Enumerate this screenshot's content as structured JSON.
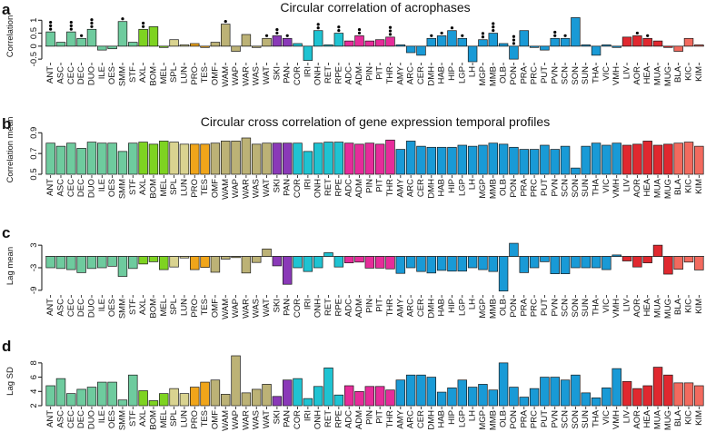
{
  "chart_data": [
    {
      "type": "bar",
      "panel_letter": "a",
      "title": "Circular correlation of acrophases",
      "ylabel": "Correlation",
      "ylim": [
        -0.6,
        1.15
      ],
      "yticks": [
        -0.5,
        0,
        0.5,
        1
      ],
      "ytick_labels": [
        "-0.5",
        "0",
        "0.5",
        "1"
      ],
      "categories": [
        "ANT",
        "ASC",
        "CEC",
        "DEC",
        "DUO",
        "ILE",
        "OES",
        "SMM",
        "STF",
        "AXL",
        "BOM",
        "MEL",
        "SPL",
        "LUN",
        "PRO",
        "TES",
        "OMF",
        "WAM",
        "WAP",
        "WAR",
        "WAS",
        "WAT",
        "SKI",
        "PAN",
        "COR",
        "IRI",
        "ONH",
        "RET",
        "RPE",
        "ADC",
        "ADM",
        "PIN",
        "PIT",
        "THR",
        "AMY",
        "ARC",
        "CER",
        "DMH",
        "HAB",
        "HIP",
        "LGP",
        "LH",
        "MGP",
        "MMB",
        "OLB",
        "PON",
        "PRA",
        "PRC",
        "PUT",
        "PVN",
        "SCN",
        "SON",
        "SUN",
        "THA",
        "VIC",
        "VMH",
        "LIV",
        "AOR",
        "HEA",
        "MUA",
        "MUG",
        "BLA",
        "KIC",
        "KIM"
      ],
      "values": [
        0.55,
        0.15,
        0.55,
        0.3,
        0.65,
        -0.15,
        -0.1,
        0.95,
        0.15,
        0.65,
        0.75,
        -0.05,
        0.25,
        0.05,
        0.1,
        -0.05,
        0.15,
        0.85,
        -0.2,
        0.45,
        -0.05,
        0.3,
        0.4,
        0.3,
        0.1,
        -0.55,
        0.6,
        0.05,
        0.5,
        0.2,
        0.4,
        0.2,
        0.25,
        0.35,
        0.05,
        -0.25,
        -0.35,
        0.3,
        0.4,
        0.6,
        0.3,
        -0.6,
        0.25,
        0.5,
        0.1,
        -0.5,
        0.6,
        -0.05,
        -0.15,
        0.3,
        0.3,
        1.1,
        0.05,
        -0.35,
        0.05,
        -0.05,
        0.35,
        0.4,
        0.3,
        0.2,
        -0.05,
        -0.2,
        0.3,
        0.05
      ],
      "stars": [
        3,
        0,
        3,
        1,
        3,
        0,
        0,
        1,
        0,
        2,
        0,
        0,
        0,
        0,
        0,
        0,
        0,
        1,
        0,
        0,
        0,
        1,
        2,
        1,
        0,
        0,
        2,
        0,
        2,
        0,
        2,
        0,
        0,
        3,
        0,
        0,
        0,
        1,
        1,
        1,
        1,
        0,
        2,
        3,
        0,
        3,
        0,
        0,
        0,
        2,
        1,
        0,
        0,
        0,
        0,
        0,
        0,
        1,
        1,
        0,
        0,
        0,
        0,
        0
      ]
    },
    {
      "type": "bar",
      "panel_letter": "b",
      "title": "Circular cross correlation of gene expression temporal profiles",
      "ylabel": "Correlation mean",
      "ylim": [
        0.5,
        0.92
      ],
      "yticks": [
        0.5,
        0.7,
        0.9
      ],
      "ytick_labels": [
        "0.5",
        "0.7",
        "0.9"
      ],
      "categories": [
        "ANT",
        "ASC",
        "CEC",
        "DEC",
        "DUO",
        "ILE",
        "OES",
        "SMM",
        "STF",
        "AXL",
        "BOM",
        "MEL",
        "SPL",
        "LUN",
        "PRO",
        "TES",
        "OMF",
        "WAM",
        "WAP",
        "WAR",
        "WAS",
        "WAT",
        "SKI",
        "PAN",
        "COR",
        "IRI",
        "ONH",
        "RET",
        "RPE",
        "ADC",
        "ADM",
        "PIN",
        "PIT",
        "THR",
        "AMY",
        "ARC",
        "CER",
        "DMH",
        "HAB",
        "HIP",
        "LGP",
        "LH",
        "MGP",
        "MMB",
        "OLB",
        "PON",
        "PRA",
        "PRC",
        "PUT",
        "PVN",
        "SCN",
        "SON",
        "SUN",
        "THA",
        "VIC",
        "VMH",
        "LIV",
        "AOR",
        "HEA",
        "MUA",
        "MUG",
        "BLA",
        "KIC",
        "KIM"
      ],
      "values": [
        0.8,
        0.77,
        0.8,
        0.75,
        0.81,
        0.8,
        0.8,
        0.72,
        0.8,
        0.81,
        0.79,
        0.82,
        0.81,
        0.79,
        0.79,
        0.79,
        0.8,
        0.82,
        0.82,
        0.85,
        0.79,
        0.8,
        0.8,
        0.8,
        0.8,
        0.72,
        0.8,
        0.81,
        0.81,
        0.8,
        0.79,
        0.8,
        0.79,
        0.83,
        0.74,
        0.82,
        0.77,
        0.76,
        0.76,
        0.76,
        0.78,
        0.77,
        0.78,
        0.8,
        0.79,
        0.76,
        0.74,
        0.74,
        0.78,
        0.74,
        0.77,
        0.56,
        0.77,
        0.8,
        0.78,
        0.8,
        0.78,
        0.79,
        0.82,
        0.78,
        0.79,
        0.8,
        0.81,
        0.77
      ]
    },
    {
      "type": "bar",
      "panel_letter": "c",
      "title": "",
      "ylabel": "Lag mean",
      "ylim": [
        -10,
        4
      ],
      "yticks": [
        -9,
        -3,
        3
      ],
      "ytick_labels": [
        "-9",
        "-3",
        "3"
      ],
      "categories": [
        "ANT",
        "ASC",
        "CEC",
        "DEC",
        "DUO",
        "ILE",
        "OES",
        "SMM",
        "STF",
        "AXL",
        "BOM",
        "MEL",
        "SPL",
        "LUN",
        "PRO",
        "TES",
        "OMF",
        "WAM",
        "WAP",
        "WAR",
        "WAS",
        "WAT",
        "SKI",
        "PAN",
        "COR",
        "IRI",
        "ONH",
        "RET",
        "RPE",
        "ADC",
        "ADM",
        "PIN",
        "PIT",
        "THR",
        "AMY",
        "ARC",
        "CER",
        "DMH",
        "HAB",
        "HIP",
        "LGP",
        "LH",
        "MGP",
        "MMB",
        "OLB",
        "PON",
        "PRA",
        "PRC",
        "PUT",
        "PVN",
        "SCN",
        "SON",
        "SUN",
        "THA",
        "VIC",
        "VMH",
        "LIV",
        "AOR",
        "HEA",
        "MUA",
        "MUG",
        "BLA",
        "KIC",
        "KIM"
      ],
      "values": [
        -3.0,
        -3.2,
        -3.5,
        -4.3,
        -3.2,
        -3.0,
        -2.6,
        -5.3,
        -3.2,
        -2.0,
        -1.4,
        -3.5,
        -2.8,
        -0.4,
        -3.5,
        -2.9,
        -4.2,
        -0.7,
        -0.3,
        -4.4,
        -1.6,
        2.0,
        -2.5,
        -7.4,
        -3.0,
        -4.0,
        -3.0,
        1.0,
        -2.8,
        -1.7,
        -1.5,
        -3.1,
        -3.1,
        -3.3,
        -4.5,
        -3.0,
        -4.0,
        -4.4,
        -3.7,
        -3.9,
        -3.9,
        -3.0,
        -3.5,
        -4.0,
        -9.2,
        3.5,
        -4.3,
        -3.0,
        -1.4,
        -4.6,
        -4.6,
        -3.0,
        -3.0,
        -3.0,
        -3.5,
        0.4,
        -1.2,
        -2.8,
        -1.7,
        3.0,
        -4.7,
        -3.4,
        -1.5,
        -3.6
      ]
    },
    {
      "type": "bar",
      "panel_letter": "d",
      "title": "",
      "ylabel": "Lag SD",
      "ylim": [
        2,
        9
      ],
      "yticks": [
        2,
        4,
        6,
        8
      ],
      "ytick_labels": [
        "2",
        "4",
        "6",
        "8"
      ],
      "categories": [
        "ANT",
        "ASC",
        "CEC",
        "DEC",
        "DUO",
        "ILE",
        "OES",
        "SMM",
        "STF",
        "AXL",
        "BOM",
        "MEL",
        "SPL",
        "LUN",
        "PRO",
        "TES",
        "OMF",
        "WAM",
        "WAP",
        "WAR",
        "WAS",
        "WAT",
        "SKI",
        "PAN",
        "COR",
        "IRI",
        "ONH",
        "RET",
        "RPE",
        "ADC",
        "ADM",
        "PIN",
        "PIT",
        "THR",
        "AMY",
        "ARC",
        "CER",
        "DMH",
        "HAB",
        "HIP",
        "LGP",
        "LH",
        "MGP",
        "MMB",
        "OLB",
        "PON",
        "PRA",
        "PRC",
        "PUT",
        "PVN",
        "SCN",
        "SON",
        "SUN",
        "THA",
        "VIC",
        "VMH",
        "LIV",
        "AOR",
        "HEA",
        "MUA",
        "MUG",
        "BLA",
        "KIC",
        "KIM"
      ],
      "values": [
        4.8,
        5.8,
        3.7,
        4.3,
        4.6,
        5.3,
        5.3,
        2.8,
        6.3,
        4.1,
        2.7,
        3.7,
        4.4,
        3.7,
        4.6,
        5.3,
        5.6,
        3.6,
        9.0,
        3.8,
        4.3,
        5.0,
        3.3,
        5.6,
        5.8,
        3.0,
        4.7,
        7.3,
        3.5,
        4.8,
        4.0,
        4.7,
        4.7,
        4.2,
        5.6,
        6.3,
        6.3,
        6.0,
        3.9,
        4.5,
        5.6,
        4.6,
        5.0,
        4.2,
        8.0,
        4.6,
        3.2,
        4.4,
        6.0,
        6.0,
        5.6,
        6.3,
        3.8,
        3.1,
        4.5,
        7.2,
        5.4,
        4.4,
        4.8,
        7.4,
        6.3,
        5.2,
        5.2,
        4.8
      ]
    }
  ],
  "colors": {
    "group_colors": [
      "#6ecb9e",
      "#6ecb9e",
      "#6ecb9e",
      "#6ecb9e",
      "#6ecb9e",
      "#6ecb9e",
      "#6ecb9e",
      "#6ecb9e",
      "#6ecb9e",
      "#7ed321",
      "#7ed321",
      "#7ed321",
      "#d9d390",
      "#d9d390",
      "#f0a51a",
      "#f0a51a",
      "#bcb276",
      "#bcb276",
      "#bcb276",
      "#bcb276",
      "#bcb276",
      "#bcb276",
      "#8a39b8",
      "#8a39b8",
      "#1fc3d2",
      "#1fc3d2",
      "#1fc3d2",
      "#1fc3d2",
      "#1fc3d2",
      "#e62c9a",
      "#e62c9a",
      "#e62c9a",
      "#e62c9a",
      "#e62c9a",
      "#199ad6",
      "#199ad6",
      "#199ad6",
      "#199ad6",
      "#199ad6",
      "#199ad6",
      "#199ad6",
      "#199ad6",
      "#199ad6",
      "#199ad6",
      "#199ad6",
      "#199ad6",
      "#199ad6",
      "#199ad6",
      "#199ad6",
      "#199ad6",
      "#199ad6",
      "#199ad6",
      "#199ad6",
      "#199ad6",
      "#199ad6",
      "#199ad6",
      "#e0282f",
      "#e0282f",
      "#e0282f",
      "#e0282f",
      "#e0282f",
      "#f26a5e",
      "#f26a5e",
      "#f26a5e"
    ],
    "bar_stroke": "#1a1a1a",
    "axis": "#111111"
  }
}
